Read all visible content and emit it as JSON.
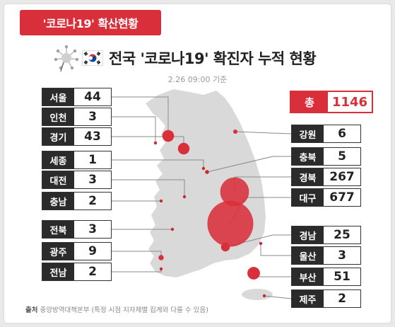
{
  "ribbon": {
    "label": "'코로나19' 확산현황"
  },
  "header": {
    "title": "전국 '코로나19' 확진자 누적 현황",
    "date": "2.26 09:00 기준"
  },
  "total": {
    "label": "총",
    "value": "1146"
  },
  "source": {
    "label": "출처",
    "text": "중앙방역대책본부 (특정 시점 지자체별 집계와 다를 수 있음)"
  },
  "colors": {
    "accent": "#d92f3a",
    "dark": "#2b2b2b",
    "map": "#d9d9d9",
    "line": "#8a8a8a"
  },
  "chart_data": {
    "type": "bubble-map",
    "title": "전국 '코로나19' 확진자 누적 현황",
    "unit": "명",
    "regions": [
      {
        "name": "서울",
        "value": 44
      },
      {
        "name": "인천",
        "value": 3
      },
      {
        "name": "경기",
        "value": 43
      },
      {
        "name": "세종",
        "value": 1
      },
      {
        "name": "대전",
        "value": 3
      },
      {
        "name": "충남",
        "value": 2
      },
      {
        "name": "전북",
        "value": 3
      },
      {
        "name": "광주",
        "value": 9
      },
      {
        "name": "전남",
        "value": 2
      },
      {
        "name": "강원",
        "value": 6
      },
      {
        "name": "충북",
        "value": 5
      },
      {
        "name": "경북",
        "value": 267
      },
      {
        "name": "대구",
        "value": 677
      },
      {
        "name": "경남",
        "value": 25
      },
      {
        "name": "울산",
        "value": 3
      },
      {
        "name": "부산",
        "value": 51
      },
      {
        "name": "제주",
        "value": 2
      }
    ],
    "total": 1146
  }
}
